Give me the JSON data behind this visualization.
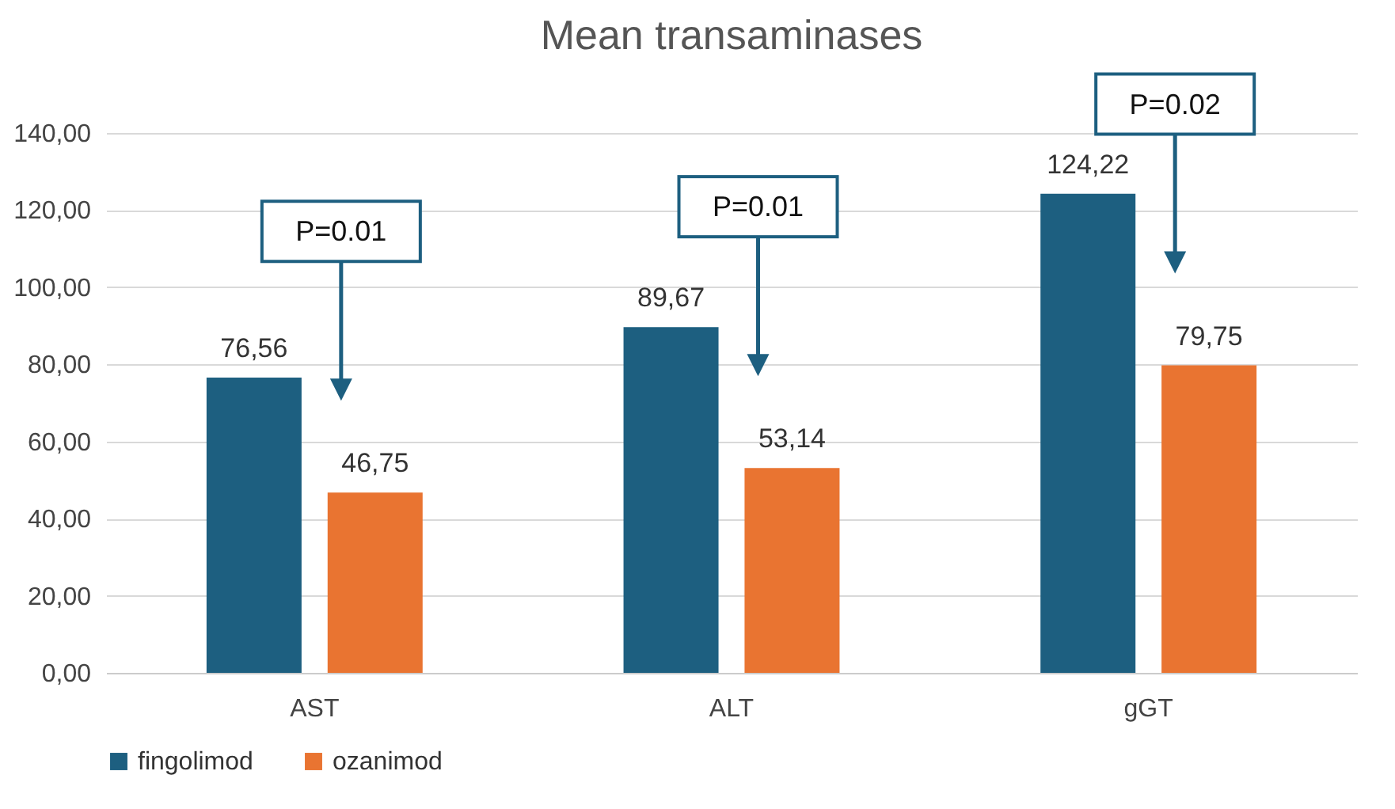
{
  "chart_data": {
    "type": "bar",
    "title": "Mean transaminases",
    "categories": [
      "AST",
      "ALT",
      "gGT"
    ],
    "series": [
      {
        "name": "fingolimod",
        "color": "#1d5f80",
        "values": [
          76.56,
          89.67,
          124.22
        ],
        "value_labels": [
          "76,56",
          "89,67",
          "124,22"
        ]
      },
      {
        "name": "ozanimod",
        "color": "#e97431",
        "values": [
          46.75,
          53.14,
          79.75
        ],
        "value_labels": [
          "46,75",
          "53,14",
          "79,75"
        ]
      }
    ],
    "ylim": [
      0,
      140
    ],
    "yticks": [
      {
        "value": 0,
        "label": "0,00"
      },
      {
        "value": 20,
        "label": "20,00"
      },
      {
        "value": 40,
        "label": "40,00"
      },
      {
        "value": 60,
        "label": "60,00"
      },
      {
        "value": 80,
        "label": "80,00"
      },
      {
        "value": 100,
        "label": "100,00"
      },
      {
        "value": 120,
        "label": "120,00"
      },
      {
        "value": 140,
        "label": "140,00"
      }
    ],
    "grid": "y",
    "legend": "bottom",
    "annotations": [
      "P=0.01",
      "P=0.01",
      "P=0.02"
    ]
  }
}
